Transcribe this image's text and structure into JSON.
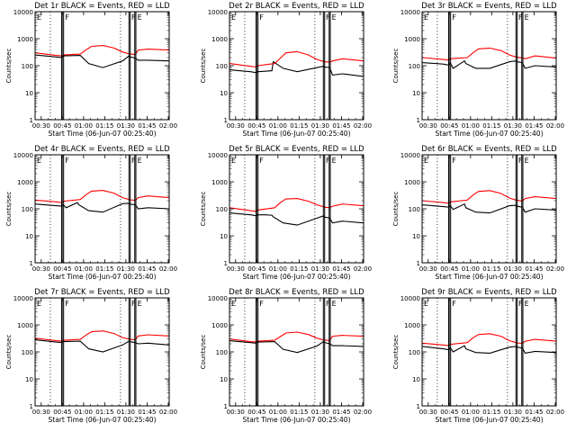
{
  "figure": {
    "colors": {
      "events": "#000000",
      "lld": "#ff0000",
      "axes": "#000000",
      "background": "#ffffff"
    }
  },
  "chart_data": [
    {
      "type": "line",
      "title": "Det 1r BLACK = Events, RED = LLD",
      "xlabel": "Start Time (06-Jun-07 00:25:40)",
      "ylabel": "Counts/sec",
      "yscale": "log",
      "ylim": [
        1,
        10000
      ],
      "x_ticks": [
        "00:30",
        "00:45",
        "01:00",
        "01:15",
        "01:30",
        "01:45",
        "02:00"
      ],
      "y_ticks": [
        "1",
        "10",
        "100",
        "1000",
        "10000"
      ],
      "annotations": [
        "E",
        "F",
        "F",
        "E"
      ],
      "series": [
        {
          "name": "Events",
          "color": "#000000",
          "x": [
            0,
            15,
            19,
            20,
            32,
            38,
            48,
            62,
            66.5,
            67,
            71,
            73,
            80,
            95
          ],
          "y": [
            250,
            210,
            200,
            230,
            240,
            120,
            85,
            150,
            230,
            215,
            190,
            160,
            160,
            150
          ]
        },
        {
          "name": "LLD",
          "color": "#ff0000",
          "x": [
            0,
            15,
            19,
            20,
            32,
            36,
            40,
            48,
            56,
            62,
            66.5,
            67,
            71,
            73,
            80,
            95
          ],
          "y": [
            300,
            240,
            230,
            250,
            270,
            380,
            520,
            560,
            450,
            320,
            275,
            275,
            260,
            380,
            410,
            380
          ]
        }
      ]
    },
    {
      "type": "line",
      "title": "Det 2r BLACK = Events, RED = LLD",
      "xlabel": "Start Time (06-Jun-07 00:25:40)",
      "ylabel": "Counts/sec",
      "yscale": "log",
      "ylim": [
        1,
        10000
      ],
      "x_ticks": [
        "00:30",
        "00:45",
        "01:00",
        "01:15",
        "01:30",
        "01:45",
        "02:00"
      ],
      "y_ticks": [
        "1",
        "10",
        "100",
        "1000",
        "10000"
      ],
      "annotations": [
        "E",
        "F",
        "F",
        "E"
      ],
      "series": [
        {
          "name": "Events",
          "color": "#000000",
          "x": [
            0,
            15,
            19,
            20,
            25,
            30,
            31,
            38,
            48,
            62,
            66.5,
            67,
            71,
            73,
            80,
            95
          ],
          "y": [
            70,
            60,
            55,
            60,
            62,
            65,
            140,
            80,
            60,
            85,
            95,
            90,
            85,
            45,
            50,
            40
          ]
        },
        {
          "name": "LLD",
          "color": "#ff0000",
          "x": [
            0,
            15,
            19,
            20,
            32,
            36,
            40,
            48,
            56,
            62,
            66.5,
            67,
            71,
            73,
            80,
            95
          ],
          "y": [
            120,
            95,
            90,
            100,
            120,
            190,
            300,
            330,
            250,
            170,
            145,
            140,
            135,
            150,
            180,
            150
          ]
        }
      ]
    },
    {
      "type": "line",
      "title": "Det 3r BLACK = Events, RED = LLD",
      "xlabel": "Start Time (06-Jun-07 00:25:40)",
      "ylabel": "Counts/sec",
      "yscale": "log",
      "ylim": [
        1,
        10000
      ],
      "x_ticks": [
        "00:30",
        "00:45",
        "01:00",
        "01:15",
        "01:30",
        "01:45",
        "02:00"
      ],
      "y_ticks": [
        "1",
        "10",
        "100",
        "1000",
        "10000"
      ],
      "annotations": [
        "E",
        "F",
        "F",
        "E"
      ],
      "series": [
        {
          "name": "Events",
          "color": "#000000",
          "x": [
            0,
            15,
            19,
            20,
            22,
            30,
            31,
            38,
            48,
            62,
            66.5,
            67,
            71,
            73,
            80,
            95
          ],
          "y": [
            130,
            115,
            105,
            125,
            80,
            150,
            120,
            80,
            80,
            140,
            150,
            140,
            130,
            80,
            100,
            90
          ]
        },
        {
          "name": "LLD",
          "color": "#ff0000",
          "x": [
            0,
            15,
            19,
            20,
            32,
            36,
            40,
            48,
            56,
            62,
            66.5,
            67,
            71,
            73,
            80,
            95
          ],
          "y": [
            200,
            170,
            160,
            180,
            200,
            300,
            420,
            450,
            360,
            250,
            210,
            205,
            195,
            180,
            230,
            190
          ]
        }
      ]
    },
    {
      "type": "line",
      "title": "Det 4r BLACK = Events, RED = LLD",
      "xlabel": "Start Time (06-Jun-07 00:25:40)",
      "ylabel": "Counts/sec",
      "yscale": "log",
      "ylim": [
        1,
        10000
      ],
      "x_ticks": [
        "00:30",
        "00:45",
        "01:00",
        "01:15",
        "01:30",
        "01:45",
        "02:00"
      ],
      "y_ticks": [
        "1",
        "10",
        "100",
        "1000",
        "10000"
      ],
      "annotations": [
        "E",
        "F",
        "F",
        "E"
      ],
      "series": [
        {
          "name": "Events",
          "color": "#000000",
          "x": [
            0,
            15,
            19,
            20,
            22,
            30,
            31,
            38,
            48,
            62,
            66.5,
            67,
            71,
            73,
            80,
            95
          ],
          "y": [
            150,
            130,
            125,
            140,
            110,
            170,
            140,
            85,
            75,
            155,
            160,
            150,
            140,
            100,
            110,
            100
          ]
        },
        {
          "name": "LLD",
          "color": "#ff0000",
          "x": [
            0,
            15,
            19,
            20,
            32,
            36,
            40,
            48,
            56,
            62,
            66.5,
            67,
            71,
            73,
            80,
            95
          ],
          "y": [
            210,
            180,
            170,
            190,
            220,
            330,
            450,
            480,
            380,
            260,
            220,
            215,
            205,
            260,
            300,
            260
          ]
        }
      ]
    },
    {
      "type": "line",
      "title": "Det 5r BLACK = Events, RED = LLD",
      "xlabel": "Start Time (06-Jun-07 00:25:40)",
      "ylabel": "Counts/sec",
      "yscale": "log",
      "ylim": [
        1,
        10000
      ],
      "x_ticks": [
        "00:30",
        "00:45",
        "01:00",
        "01:15",
        "01:30",
        "01:45",
        "02:00"
      ],
      "y_ticks": [
        "1",
        "10",
        "100",
        "1000",
        "10000"
      ],
      "annotations": [
        "E",
        "F",
        "F",
        "E"
      ],
      "series": [
        {
          "name": "Events",
          "color": "#000000",
          "x": [
            0,
            15,
            19,
            20,
            25,
            30,
            31,
            38,
            48,
            62,
            66.5,
            67,
            71,
            73,
            80,
            95
          ],
          "y": [
            70,
            60,
            55,
            60,
            60,
            58,
            50,
            30,
            25,
            45,
            55,
            50,
            45,
            30,
            35,
            30
          ]
        },
        {
          "name": "LLD",
          "color": "#ff0000",
          "x": [
            0,
            15,
            19,
            20,
            32,
            36,
            40,
            48,
            56,
            62,
            66.5,
            67,
            71,
            73,
            80,
            95
          ],
          "y": [
            110,
            85,
            80,
            90,
            110,
            170,
            230,
            240,
            190,
            140,
            120,
            115,
            110,
            125,
            150,
            130
          ]
        }
      ]
    },
    {
      "type": "line",
      "title": "Det 6r BLACK = Events, RED = LLD",
      "xlabel": "Start Time (06-Jun-07 00:25:40)",
      "ylabel": "Counts/sec",
      "yscale": "log",
      "ylim": [
        1,
        10000
      ],
      "x_ticks": [
        "00:30",
        "00:45",
        "01:00",
        "01:15",
        "01:30",
        "01:45",
        "02:00"
      ],
      "y_ticks": [
        "1",
        "10",
        "100",
        "1000",
        "10000"
      ],
      "annotations": [
        "E",
        "F",
        "F",
        "E"
      ],
      "series": [
        {
          "name": "Events",
          "color": "#000000",
          "x": [
            0,
            15,
            19,
            20,
            22,
            30,
            31,
            38,
            48,
            62,
            66.5,
            67,
            71,
            73,
            80,
            95
          ],
          "y": [
            140,
            120,
            115,
            130,
            95,
            150,
            110,
            75,
            70,
            130,
            135,
            125,
            115,
            75,
            100,
            90
          ]
        },
        {
          "name": "LLD",
          "color": "#ff0000",
          "x": [
            0,
            15,
            19,
            20,
            32,
            36,
            40,
            48,
            56,
            62,
            66.5,
            67,
            71,
            73,
            80,
            95
          ],
          "y": [
            200,
            170,
            160,
            180,
            210,
            320,
            440,
            470,
            370,
            250,
            210,
            205,
            195,
            240,
            280,
            240
          ]
        }
      ]
    },
    {
      "type": "line",
      "title": "Det 7r BLACK = Events, RED = LLD",
      "xlabel": "Start Time (06-Jun-07 00:25:40)",
      "ylabel": "Counts/sec",
      "yscale": "log",
      "ylim": [
        1,
        10000
      ],
      "x_ticks": [
        "00:30",
        "00:45",
        "01:00",
        "01:15",
        "01:30",
        "01:45",
        "02:00"
      ],
      "y_ticks": [
        "1",
        "10",
        "100",
        "1000",
        "10000"
      ],
      "annotations": [
        "E",
        "F",
        "F",
        "E"
      ],
      "series": [
        {
          "name": "Events",
          "color": "#000000",
          "x": [
            0,
            15,
            19,
            20,
            32,
            38,
            48,
            62,
            66.5,
            67,
            71,
            73,
            80,
            95
          ],
          "y": [
            280,
            230,
            220,
            240,
            250,
            130,
            100,
            180,
            250,
            240,
            220,
            200,
            210,
            180
          ]
        },
        {
          "name": "LLD",
          "color": "#ff0000",
          "x": [
            0,
            15,
            19,
            20,
            32,
            36,
            40,
            48,
            56,
            62,
            66.5,
            67,
            71,
            73,
            80,
            95
          ],
          "y": [
            320,
            260,
            250,
            270,
            290,
            420,
            560,
            600,
            480,
            340,
            300,
            295,
            280,
            390,
            430,
            390
          ]
        }
      ]
    },
    {
      "type": "line",
      "title": "Det 8r BLACK = Events, RED = LLD",
      "xlabel": "Start Time (06-Jun-07 00:25:40)",
      "ylabel": "Counts/sec",
      "yscale": "log",
      "ylim": [
        1,
        10000
      ],
      "x_ticks": [
        "00:30",
        "00:45",
        "01:00",
        "01:15",
        "01:30",
        "01:45",
        "02:00"
      ],
      "y_ticks": [
        "1",
        "10",
        "100",
        "1000",
        "10000"
      ],
      "annotations": [
        "E",
        "F",
        "F",
        "E"
      ],
      "series": [
        {
          "name": "Events",
          "color": "#000000",
          "x": [
            0,
            15,
            19,
            20,
            32,
            38,
            48,
            62,
            66.5,
            67,
            71,
            73,
            80,
            95
          ],
          "y": [
            260,
            220,
            210,
            230,
            240,
            125,
            95,
            165,
            240,
            225,
            200,
            170,
            170,
            160
          ]
        },
        {
          "name": "LLD",
          "color": "#ff0000",
          "x": [
            0,
            15,
            19,
            20,
            32,
            36,
            40,
            48,
            56,
            62,
            66.5,
            67,
            71,
            73,
            80,
            95
          ],
          "y": [
            300,
            240,
            230,
            250,
            270,
            370,
            500,
            540,
            440,
            320,
            280,
            275,
            265,
            380,
            410,
            380
          ]
        }
      ]
    },
    {
      "type": "line",
      "title": "Det 9r BLACK = Events, RED = LLD",
      "xlabel": "Start Time (06-Jun-07 00:25:40)",
      "ylabel": "Counts/sec",
      "yscale": "log",
      "ylim": [
        1,
        10000
      ],
      "x_ticks": [
        "00:30",
        "00:45",
        "01:00",
        "01:15",
        "01:30",
        "01:45",
        "02:00"
      ],
      "y_ticks": [
        "1",
        "10",
        "100",
        "1000",
        "10000"
      ],
      "annotations": [
        "E",
        "F",
        "F",
        "E"
      ],
      "series": [
        {
          "name": "Events",
          "color": "#000000",
          "x": [
            0,
            15,
            19,
            20,
            22,
            30,
            31,
            38,
            48,
            62,
            66.5,
            67,
            71,
            73,
            80,
            95
          ],
          "y": [
            160,
            130,
            120,
            140,
            100,
            170,
            130,
            95,
            90,
            150,
            160,
            150,
            140,
            90,
            105,
            95
          ]
        },
        {
          "name": "LLD",
          "color": "#ff0000",
          "x": [
            0,
            15,
            19,
            20,
            32,
            36,
            40,
            48,
            56,
            62,
            66.5,
            67,
            71,
            73,
            80,
            95
          ],
          "y": [
            210,
            180,
            170,
            190,
            220,
            330,
            440,
            470,
            380,
            260,
            220,
            215,
            205,
            250,
            290,
            250
          ]
        }
      ]
    }
  ]
}
